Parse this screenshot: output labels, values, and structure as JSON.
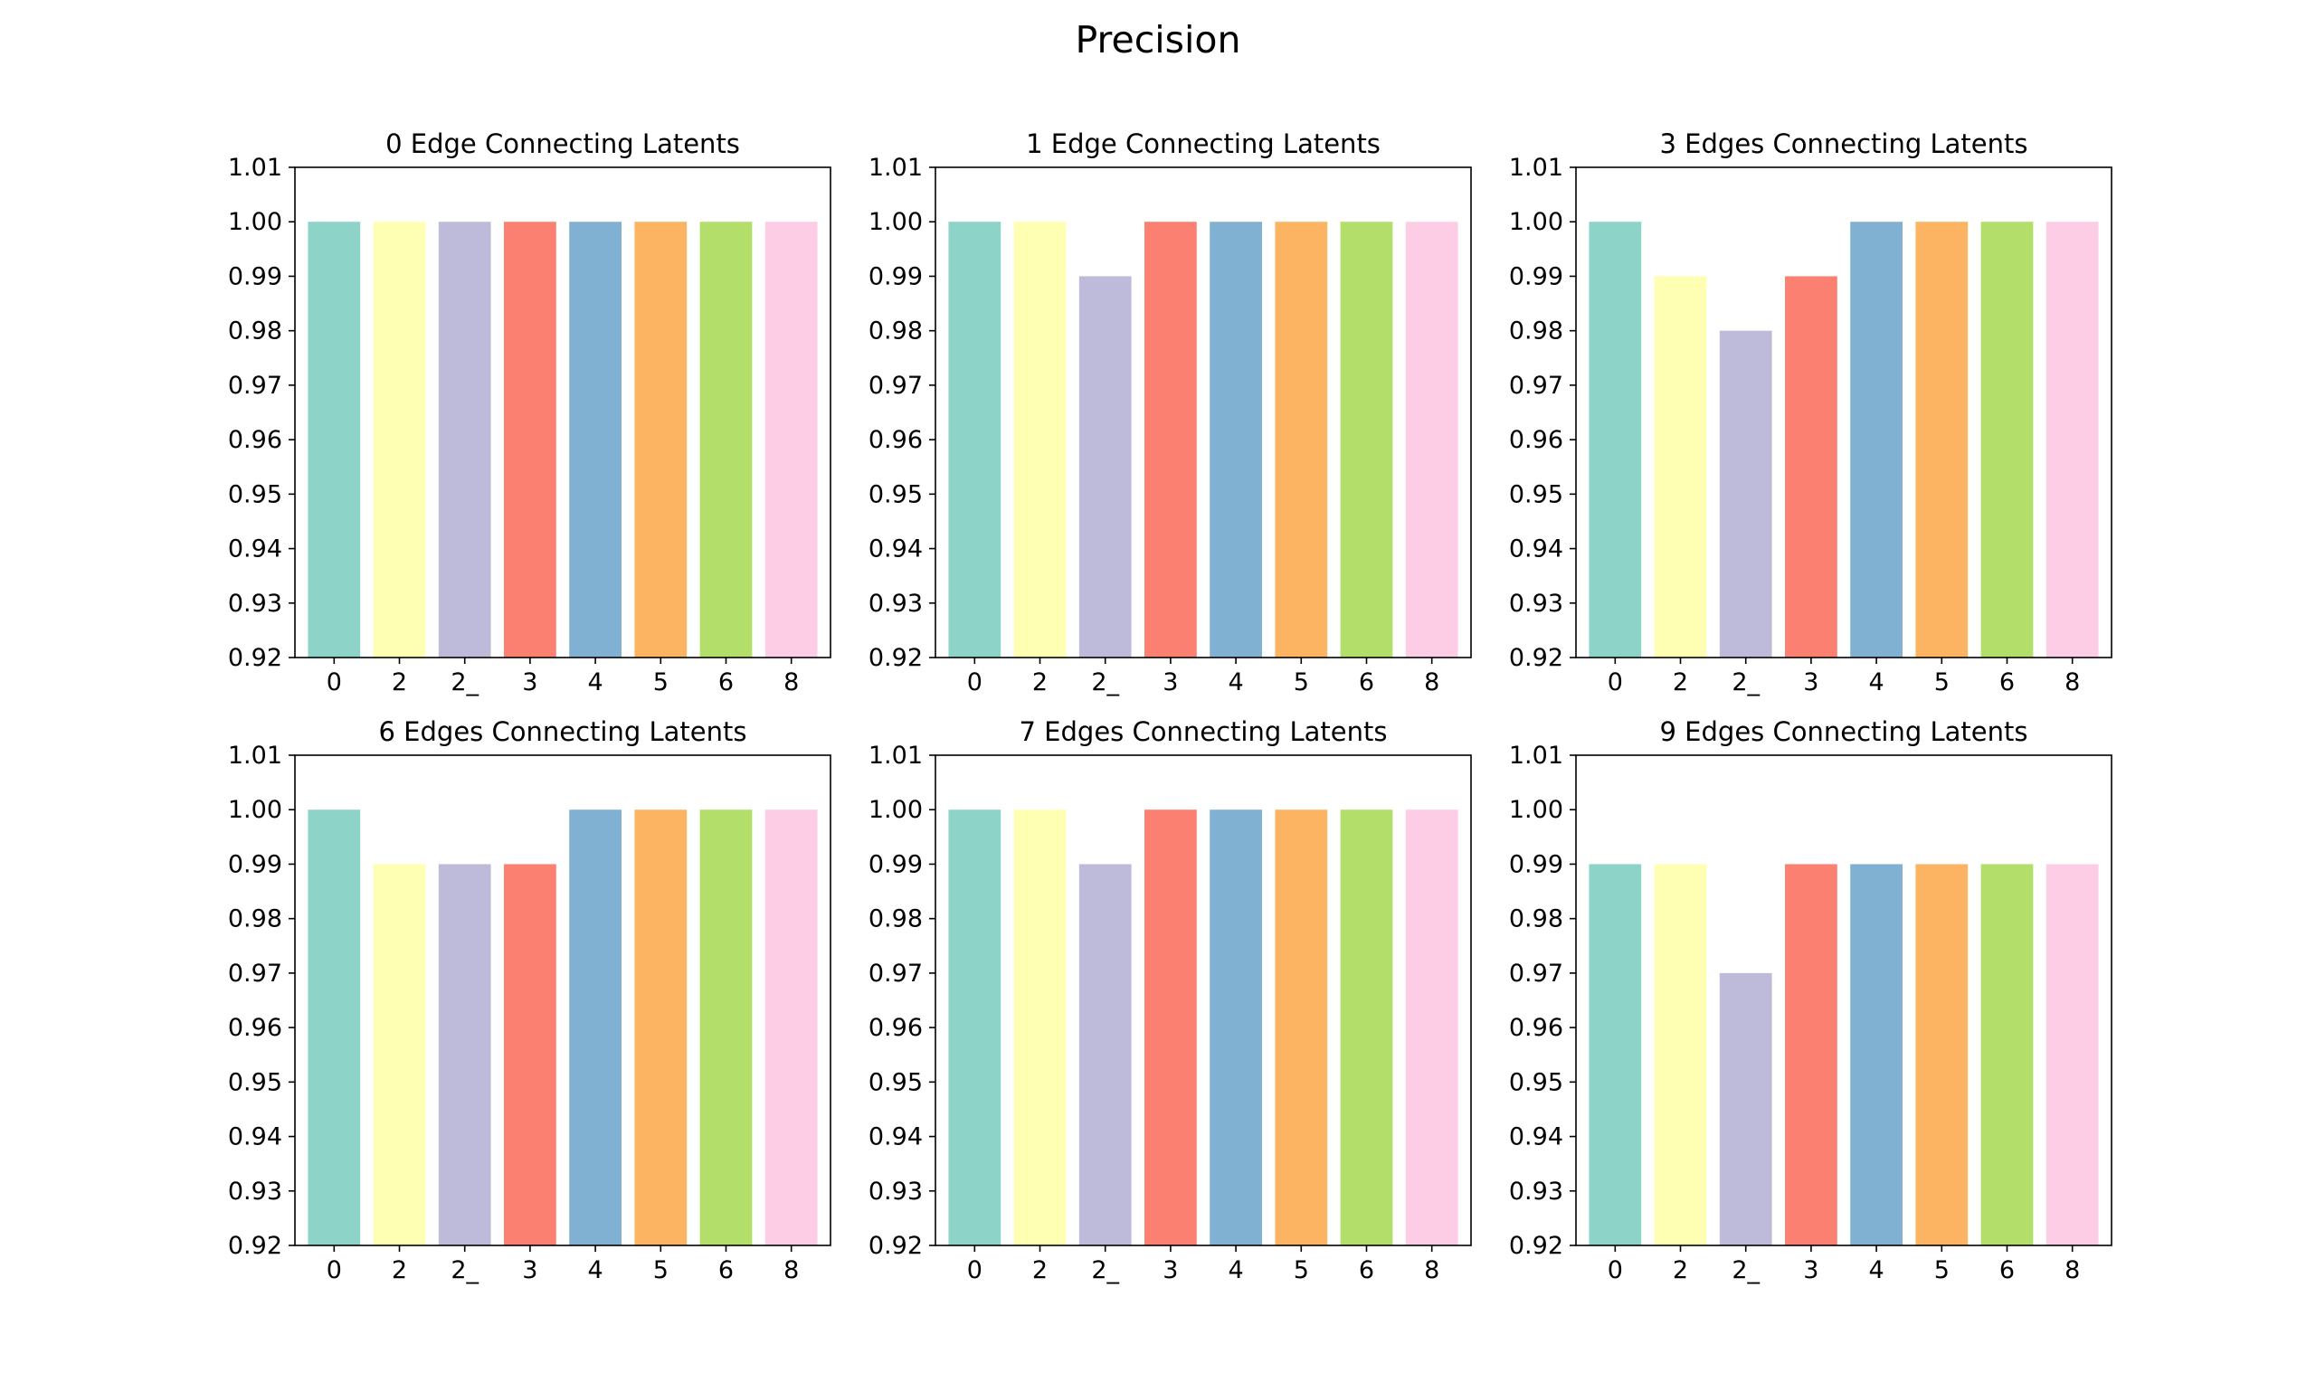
{
  "figure": {
    "title": "Precision"
  },
  "chart_data": [
    {
      "type": "bar",
      "title": "0 Edge Connecting Latents",
      "categories": [
        "0",
        "2",
        "2_",
        "3",
        "4",
        "5",
        "6",
        "8"
      ],
      "values": [
        1.0,
        1.0,
        1.0,
        1.0,
        1.0,
        1.0,
        1.0,
        1.0
      ],
      "ylim": [
        0.92,
        1.01
      ],
      "yticks": [
        "0.92",
        "0.93",
        "0.94",
        "0.95",
        "0.96",
        "0.97",
        "0.98",
        "0.99",
        "1.00",
        "1.01"
      ],
      "xlabel": "",
      "ylabel": ""
    },
    {
      "type": "bar",
      "title": "1 Edge Connecting Latents",
      "categories": [
        "0",
        "2",
        "2_",
        "3",
        "4",
        "5",
        "6",
        "8"
      ],
      "values": [
        1.0,
        1.0,
        0.99,
        1.0,
        1.0,
        1.0,
        1.0,
        1.0
      ],
      "ylim": [
        0.92,
        1.01
      ],
      "yticks": [
        "0.92",
        "0.93",
        "0.94",
        "0.95",
        "0.96",
        "0.97",
        "0.98",
        "0.99",
        "1.00",
        "1.01"
      ],
      "xlabel": "",
      "ylabel": ""
    },
    {
      "type": "bar",
      "title": "3 Edges Connecting Latents",
      "categories": [
        "0",
        "2",
        "2_",
        "3",
        "4",
        "5",
        "6",
        "8"
      ],
      "values": [
        1.0,
        0.99,
        0.98,
        0.99,
        1.0,
        1.0,
        1.0,
        1.0
      ],
      "ylim": [
        0.92,
        1.01
      ],
      "yticks": [
        "0.92",
        "0.93",
        "0.94",
        "0.95",
        "0.96",
        "0.97",
        "0.98",
        "0.99",
        "1.00",
        "1.01"
      ],
      "xlabel": "",
      "ylabel": ""
    },
    {
      "type": "bar",
      "title": "6 Edges Connecting Latents",
      "categories": [
        "0",
        "2",
        "2_",
        "3",
        "4",
        "5",
        "6",
        "8"
      ],
      "values": [
        1.0,
        0.99,
        0.99,
        0.99,
        1.0,
        1.0,
        1.0,
        1.0
      ],
      "ylim": [
        0.92,
        1.01
      ],
      "yticks": [
        "0.92",
        "0.93",
        "0.94",
        "0.95",
        "0.96",
        "0.97",
        "0.98",
        "0.99",
        "1.00",
        "1.01"
      ],
      "xlabel": "",
      "ylabel": ""
    },
    {
      "type": "bar",
      "title": "7 Edges Connecting Latents",
      "categories": [
        "0",
        "2",
        "2_",
        "3",
        "4",
        "5",
        "6",
        "8"
      ],
      "values": [
        1.0,
        1.0,
        0.99,
        1.0,
        1.0,
        1.0,
        1.0,
        1.0
      ],
      "ylim": [
        0.92,
        1.01
      ],
      "yticks": [
        "0.92",
        "0.93",
        "0.94",
        "0.95",
        "0.96",
        "0.97",
        "0.98",
        "0.99",
        "1.00",
        "1.01"
      ],
      "xlabel": "",
      "ylabel": ""
    },
    {
      "type": "bar",
      "title": "9 Edges Connecting Latents",
      "categories": [
        "0",
        "2",
        "2_",
        "3",
        "4",
        "5",
        "6",
        "8"
      ],
      "values": [
        0.99,
        0.99,
        0.97,
        0.99,
        0.99,
        0.99,
        0.99,
        0.99
      ],
      "ylim": [
        0.92,
        1.01
      ],
      "yticks": [
        "0.92",
        "0.93",
        "0.94",
        "0.95",
        "0.96",
        "0.97",
        "0.98",
        "0.99",
        "1.00",
        "1.01"
      ],
      "xlabel": "",
      "ylabel": ""
    }
  ],
  "colors": [
    "#8dd3c7",
    "#ffffb3",
    "#bebada",
    "#fb8072",
    "#80b1d3",
    "#fdb462",
    "#b3de69",
    "#fccde5"
  ]
}
